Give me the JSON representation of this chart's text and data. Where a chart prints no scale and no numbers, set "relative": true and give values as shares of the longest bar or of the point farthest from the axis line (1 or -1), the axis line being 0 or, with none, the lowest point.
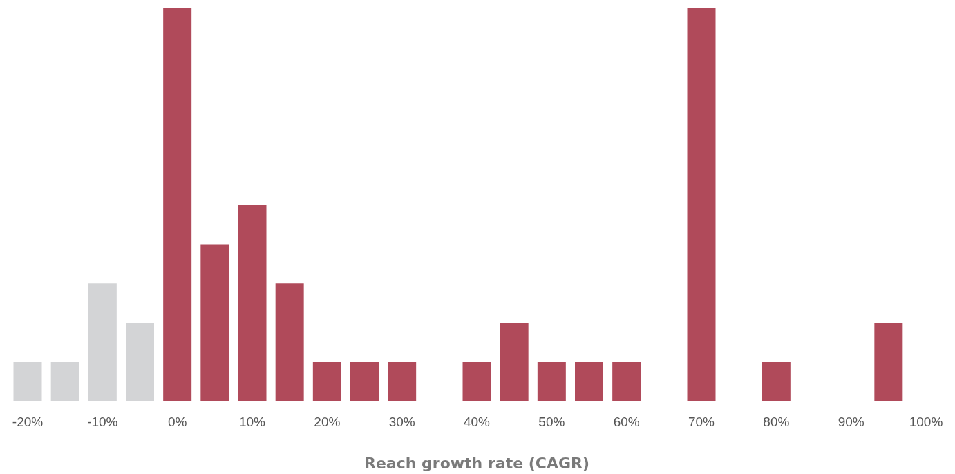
{
  "chart_data": {
    "type": "bar",
    "relative": true,
    "xlabel": "Reach growth rate (CAGR)",
    "xlim": [
      -20,
      100
    ],
    "xticks": [
      {
        "value": -20,
        "label": "-20%"
      },
      {
        "value": -10,
        "label": "-10%"
      },
      {
        "value": 0,
        "label": "0%"
      },
      {
        "value": 10,
        "label": "10%"
      },
      {
        "value": 20,
        "label": "20%"
      },
      {
        "value": 30,
        "label": "30%"
      },
      {
        "value": 40,
        "label": "40%"
      },
      {
        "value": 50,
        "label": "50%"
      },
      {
        "value": 60,
        "label": "60%"
      },
      {
        "value": 70,
        "label": "70%"
      },
      {
        "value": 80,
        "label": "80%"
      },
      {
        "value": 90,
        "label": "90%"
      },
      {
        "value": 100,
        "label": "100%"
      }
    ],
    "x": [
      -20,
      -15,
      -10,
      -5,
      0,
      5,
      10,
      15,
      20,
      25,
      30,
      40,
      45,
      50,
      55,
      60,
      70,
      80,
      95
    ],
    "values": [
      0.1,
      0.1,
      0.3,
      0.2,
      1,
      0.4,
      0.5,
      0.3,
      0.1,
      0.1,
      0.1,
      0.1,
      0.2,
      0.1,
      0.1,
      0.1,
      1,
      0.1,
      0.2
    ],
    "colors": [
      "#d3d4d6",
      "#d3d4d6",
      "#d3d4d6",
      "#d3d4d6",
      "#b04a5a",
      "#b04a5a",
      "#b04a5a",
      "#b04a5a",
      "#b04a5a",
      "#b04a5a",
      "#b04a5a",
      "#b04a5a",
      "#b04a5a",
      "#b04a5a",
      "#b04a5a",
      "#b04a5a",
      "#b04a5a",
      "#b04a5a",
      "#b04a5a"
    ],
    "grid": false
  }
}
